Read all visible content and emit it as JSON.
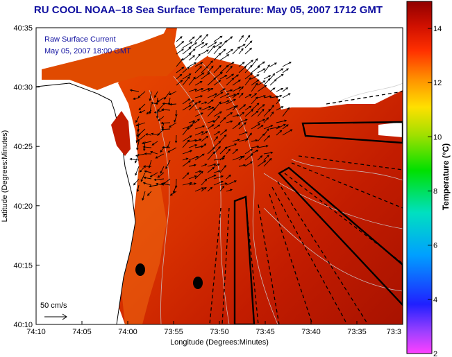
{
  "title": "RU COOL  NOAA–18  Sea Surface Temperature:  May 05, 2007 1712 GMT",
  "annotation": {
    "line1": "Raw Surface Current",
    "line2": "May 05, 2007 18:00 GMT"
  },
  "scale_label": "50 cm/s",
  "axes": {
    "xlabel": "Longitude (Degrees:Minutes)",
    "ylabel": "Latitude (Degrees:Minutes)",
    "xticks": [
      "74:10",
      "74:05",
      "74:00",
      "73:55",
      "73:50",
      "73:45",
      "73:40",
      "73:35",
      "73:3"
    ],
    "yticks": [
      "40:35",
      "40:30",
      "40:25",
      "40:20",
      "40:15",
      "40:10"
    ]
  },
  "colorbar": {
    "title": "Temperature (°C)",
    "ticks": [
      "14",
      "12",
      "10",
      "8",
      "6",
      "4",
      "2"
    ],
    "min": 2,
    "max": 15
  },
  "colors": {
    "title": "#1010a0",
    "sea_warm": "#c62000",
    "sea_mid": "#e04000",
    "sea_cool": "#f07000",
    "land": "#ffffff"
  }
}
